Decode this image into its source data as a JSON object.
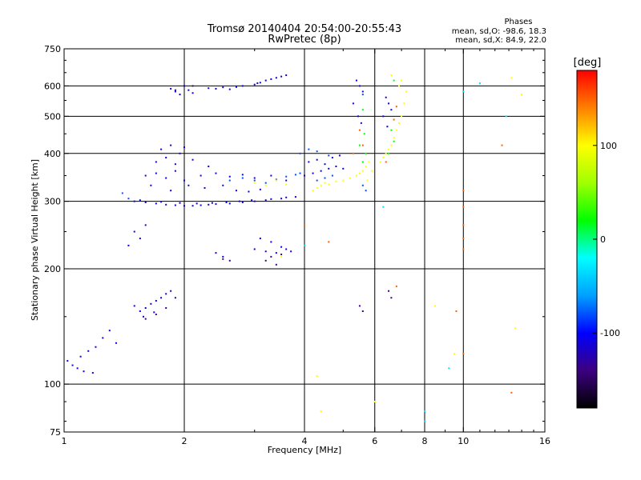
{
  "chart_data": {
    "type": "scatter",
    "title": "Tromsø 20140404 20:54:00-20:55:43",
    "subtitle": "RwPretec (8p)",
    "xlabel": "Frequency [MHz]",
    "ylabel": "Stationary phase Virtual Height [km]",
    "x_scale": "log",
    "y_scale": "log",
    "xlim": [
      1,
      16
    ],
    "ylim": [
      75,
      750
    ],
    "x_ticks": [
      1,
      2,
      4,
      6,
      8,
      10,
      16
    ],
    "x_tick_labels": [
      "1",
      "2",
      "4",
      "6",
      "8",
      "10",
      "16"
    ],
    "x_gridlines": [
      2,
      4,
      6,
      8,
      10
    ],
    "y_ticks": [
      75,
      100,
      200,
      300,
      400,
      500,
      600,
      750
    ],
    "y_tick_labels": [
      "75",
      "100",
      "200",
      "300",
      "400",
      "500",
      "600",
      "750"
    ],
    "y_gridlines": [
      100,
      200,
      300,
      400,
      500,
      600
    ],
    "grid": true,
    "stats": {
      "header": "Phases",
      "line1": "mean, sd,O: -98.6, 18.3",
      "line2": "mean, sd,X:  84.9, 22.0"
    },
    "colorbar": {
      "label": "[deg]",
      "range": [
        -180,
        180
      ],
      "ticks": [
        100,
        0,
        -100
      ],
      "tick_labels": [
        "100",
        "0",
        "-100"
      ],
      "colors": [
        "#000000",
        "#3c0080",
        "#0000ff",
        "#00a0ff",
        "#00ffff",
        "#00ff00",
        "#a0ff00",
        "#ffff00",
        "#ff8000",
        "#ff0000"
      ]
    },
    "series": [
      {
        "phase": -110,
        "points": [
          [
            1.5,
            300
          ],
          [
            1.6,
            298
          ],
          [
            1.7,
            296
          ],
          [
            1.8,
            294
          ],
          [
            1.9,
            293
          ],
          [
            2.0,
            292
          ],
          [
            2.1,
            292
          ],
          [
            2.2,
            293
          ],
          [
            2.3,
            294
          ],
          [
            2.4,
            295
          ],
          [
            2.6,
            296
          ],
          [
            2.8,
            298
          ],
          [
            3.0,
            300
          ],
          [
            3.2,
            302
          ],
          [
            3.5,
            305
          ],
          [
            3.8,
            308
          ],
          [
            1.55,
            302
          ],
          [
            1.75,
            299
          ],
          [
            1.95,
            297
          ],
          [
            2.15,
            296
          ],
          [
            2.35,
            297
          ],
          [
            2.55,
            298
          ],
          [
            2.75,
            300
          ],
          [
            2.95,
            302
          ],
          [
            3.3,
            304
          ],
          [
            3.6,
            307
          ],
          [
            1.85,
            590
          ],
          [
            1.9,
            580
          ],
          [
            1.95,
            570
          ],
          [
            2.0,
            600
          ],
          [
            2.05,
            585
          ],
          [
            2.1,
            575
          ],
          [
            2.4,
            590
          ],
          [
            2.5,
            595
          ],
          [
            2.6,
            588
          ],
          [
            2.8,
            600
          ],
          [
            3.0,
            605
          ],
          [
            3.1,
            612
          ],
          [
            3.2,
            620
          ],
          [
            3.3,
            625
          ],
          [
            3.4,
            630
          ],
          [
            3.5,
            635
          ],
          [
            3.6,
            640
          ],
          [
            2.3,
            592
          ],
          [
            2.7,
            596
          ],
          [
            3.05,
            610
          ],
          [
            1.6,
            350
          ],
          [
            1.7,
            355
          ],
          [
            1.8,
            345
          ],
          [
            1.9,
            360
          ],
          [
            2.0,
            340
          ],
          [
            2.2,
            350
          ],
          [
            2.4,
            355
          ],
          [
            2.6,
            348
          ],
          [
            2.8,
            352
          ],
          [
            3.0,
            345
          ],
          [
            3.3,
            350
          ],
          [
            3.6,
            340
          ],
          [
            1.65,
            330
          ],
          [
            1.85,
            320
          ],
          [
            2.05,
            330
          ],
          [
            2.25,
            325
          ],
          [
            2.5,
            330
          ],
          [
            2.7,
            320
          ],
          [
            2.9,
            318
          ],
          [
            3.1,
            322
          ],
          [
            1.7,
            380
          ],
          [
            1.8,
            390
          ],
          [
            1.9,
            375
          ],
          [
            2.1,
            385
          ],
          [
            2.3,
            370
          ],
          [
            1.75,
            410
          ],
          [
            1.85,
            420
          ],
          [
            1.95,
            400
          ],
          [
            2.0,
            415
          ],
          [
            4.0,
            350
          ],
          [
            4.2,
            355
          ],
          [
            4.4,
            360
          ],
          [
            4.6,
            365
          ],
          [
            4.8,
            370
          ],
          [
            5.0,
            365
          ],
          [
            4.1,
            380
          ],
          [
            4.3,
            385
          ],
          [
            4.5,
            375
          ],
          [
            4.7,
            390
          ],
          [
            4.9,
            395
          ],
          [
            1.5,
            160
          ],
          [
            1.55,
            155
          ],
          [
            1.6,
            158
          ],
          [
            1.65,
            162
          ],
          [
            1.7,
            165
          ],
          [
            1.75,
            168
          ],
          [
            1.8,
            172
          ],
          [
            1.85,
            175
          ],
          [
            1.58,
            150
          ],
          [
            1.68,
            154
          ],
          [
            1.02,
            115
          ],
          [
            1.05,
            112
          ],
          [
            1.08,
            110
          ],
          [
            1.1,
            118
          ],
          [
            1.15,
            122
          ],
          [
            1.2,
            125
          ],
          [
            1.25,
            132
          ],
          [
            1.3,
            138
          ],
          [
            1.35,
            128
          ],
          [
            1.12,
            108
          ],
          [
            1.18,
            107
          ],
          [
            2.4,
            220
          ],
          [
            2.5,
            215
          ],
          [
            3.0,
            225
          ],
          [
            3.2,
            222
          ],
          [
            3.4,
            220
          ],
          [
            3.5,
            228
          ],
          [
            3.6,
            225
          ],
          [
            3.7,
            222
          ],
          [
            3.1,
            240
          ],
          [
            3.3,
            235
          ],
          [
            1.5,
            250
          ],
          [
            1.55,
            240
          ],
          [
            1.45,
            230
          ],
          [
            1.6,
            260
          ],
          [
            5.4,
            620
          ],
          [
            5.5,
            600
          ],
          [
            5.6,
            580
          ],
          [
            5.3,
            540
          ],
          [
            5.45,
            500
          ],
          [
            5.55,
            480
          ],
          [
            6.4,
            560
          ],
          [
            6.5,
            540
          ],
          [
            6.6,
            520
          ],
          [
            6.3,
            500
          ],
          [
            6.45,
            470
          ]
        ]
      },
      {
        "phase": -140,
        "points": [
          [
            1.6,
            148
          ],
          [
            1.7,
            152
          ],
          [
            1.8,
            158
          ],
          [
            1.9,
            168
          ],
          [
            3.2,
            210
          ],
          [
            3.3,
            215
          ],
          [
            3.4,
            205
          ],
          [
            3.5,
            218
          ],
          [
            2.5,
            212
          ],
          [
            2.6,
            210
          ],
          [
            1.9,
            585
          ],
          [
            2.1,
            600
          ],
          [
            5.5,
            160
          ],
          [
            5.6,
            155
          ],
          [
            6.5,
            175
          ],
          [
            6.6,
            168
          ]
        ]
      },
      {
        "phase": -80,
        "points": [
          [
            2.6,
            340
          ],
          [
            2.8,
            345
          ],
          [
            3.0,
            340
          ],
          [
            3.2,
            335
          ],
          [
            3.4,
            342
          ],
          [
            3.6,
            348
          ],
          [
            3.8,
            352
          ],
          [
            3.9,
            355
          ],
          [
            4.3,
            340
          ],
          [
            4.5,
            345
          ],
          [
            4.7,
            350
          ],
          [
            5.6,
            330
          ],
          [
            5.7,
            320
          ],
          [
            1.4,
            315
          ],
          [
            1.45,
            305
          ],
          [
            3.9,
            400
          ],
          [
            4.1,
            410
          ],
          [
            4.3,
            405
          ],
          [
            4.6,
            395
          ],
          [
            5.6,
            570
          ]
        ]
      },
      {
        "phase": 20,
        "points": [
          [
            5.6,
            380
          ],
          [
            5.7,
            400
          ],
          [
            5.5,
            420
          ],
          [
            5.65,
            450
          ],
          [
            6.6,
            460
          ],
          [
            6.7,
            430
          ],
          [
            6.5,
            400
          ],
          [
            5.6,
            520
          ],
          [
            6.7,
            620
          ]
        ]
      },
      {
        "phase": 100,
        "points": [
          [
            4.2,
            320
          ],
          [
            4.3,
            325
          ],
          [
            4.4,
            330
          ],
          [
            4.5,
            335
          ],
          [
            4.6,
            332
          ],
          [
            4.8,
            338
          ],
          [
            5.0,
            340
          ],
          [
            5.2,
            345
          ],
          [
            5.4,
            350
          ],
          [
            5.5,
            355
          ],
          [
            5.6,
            360
          ],
          [
            5.7,
            370
          ],
          [
            5.8,
            380
          ],
          [
            5.9,
            360
          ],
          [
            5.75,
            340
          ],
          [
            6.2,
            380
          ],
          [
            6.3,
            390
          ],
          [
            6.4,
            400
          ],
          [
            6.5,
            410
          ],
          [
            6.6,
            420
          ],
          [
            6.7,
            440
          ],
          [
            6.8,
            460
          ],
          [
            6.9,
            480
          ],
          [
            7.0,
            500
          ],
          [
            7.1,
            540
          ],
          [
            7.2,
            580
          ],
          [
            7.0,
            620
          ],
          [
            6.6,
            640
          ],
          [
            6.9,
            600
          ],
          [
            3.0,
            335
          ],
          [
            3.2,
            330
          ],
          [
            3.4,
            340
          ],
          [
            3.6,
            332
          ],
          [
            3.5,
            215
          ],
          [
            4.4,
            85
          ],
          [
            4.3,
            105
          ],
          [
            6.0,
            90
          ],
          [
            8.5,
            160
          ],
          [
            9.5,
            120
          ],
          [
            13.5,
            140
          ],
          [
            13.2,
            630
          ],
          [
            14,
            570
          ]
        ]
      },
      {
        "phase": 150,
        "points": [
          [
            5.5,
            460
          ],
          [
            5.6,
            420
          ],
          [
            5.3,
            400
          ],
          [
            6.7,
            490
          ],
          [
            6.8,
            530
          ],
          [
            6.4,
            380
          ],
          [
            10.0,
            320
          ],
          [
            10.0,
            290
          ],
          [
            10.0,
            260
          ],
          [
            10.0,
            240
          ],
          [
            10.0,
            225
          ],
          [
            10.0,
            120
          ],
          [
            4.0,
            260
          ],
          [
            4.6,
            235
          ],
          [
            6.8,
            180
          ],
          [
            9.6,
            155
          ],
          [
            12.5,
            420
          ],
          [
            13.2,
            95
          ]
        ]
      },
      {
        "phase": -30,
        "points": [
          [
            4.0,
            230
          ],
          [
            8.0,
            80
          ],
          [
            8.0,
            85
          ],
          [
            9.2,
            110
          ],
          [
            11.0,
            610
          ],
          [
            6.3,
            290
          ],
          [
            12.8,
            500
          ],
          [
            10.0,
            580
          ]
        ]
      }
    ]
  }
}
